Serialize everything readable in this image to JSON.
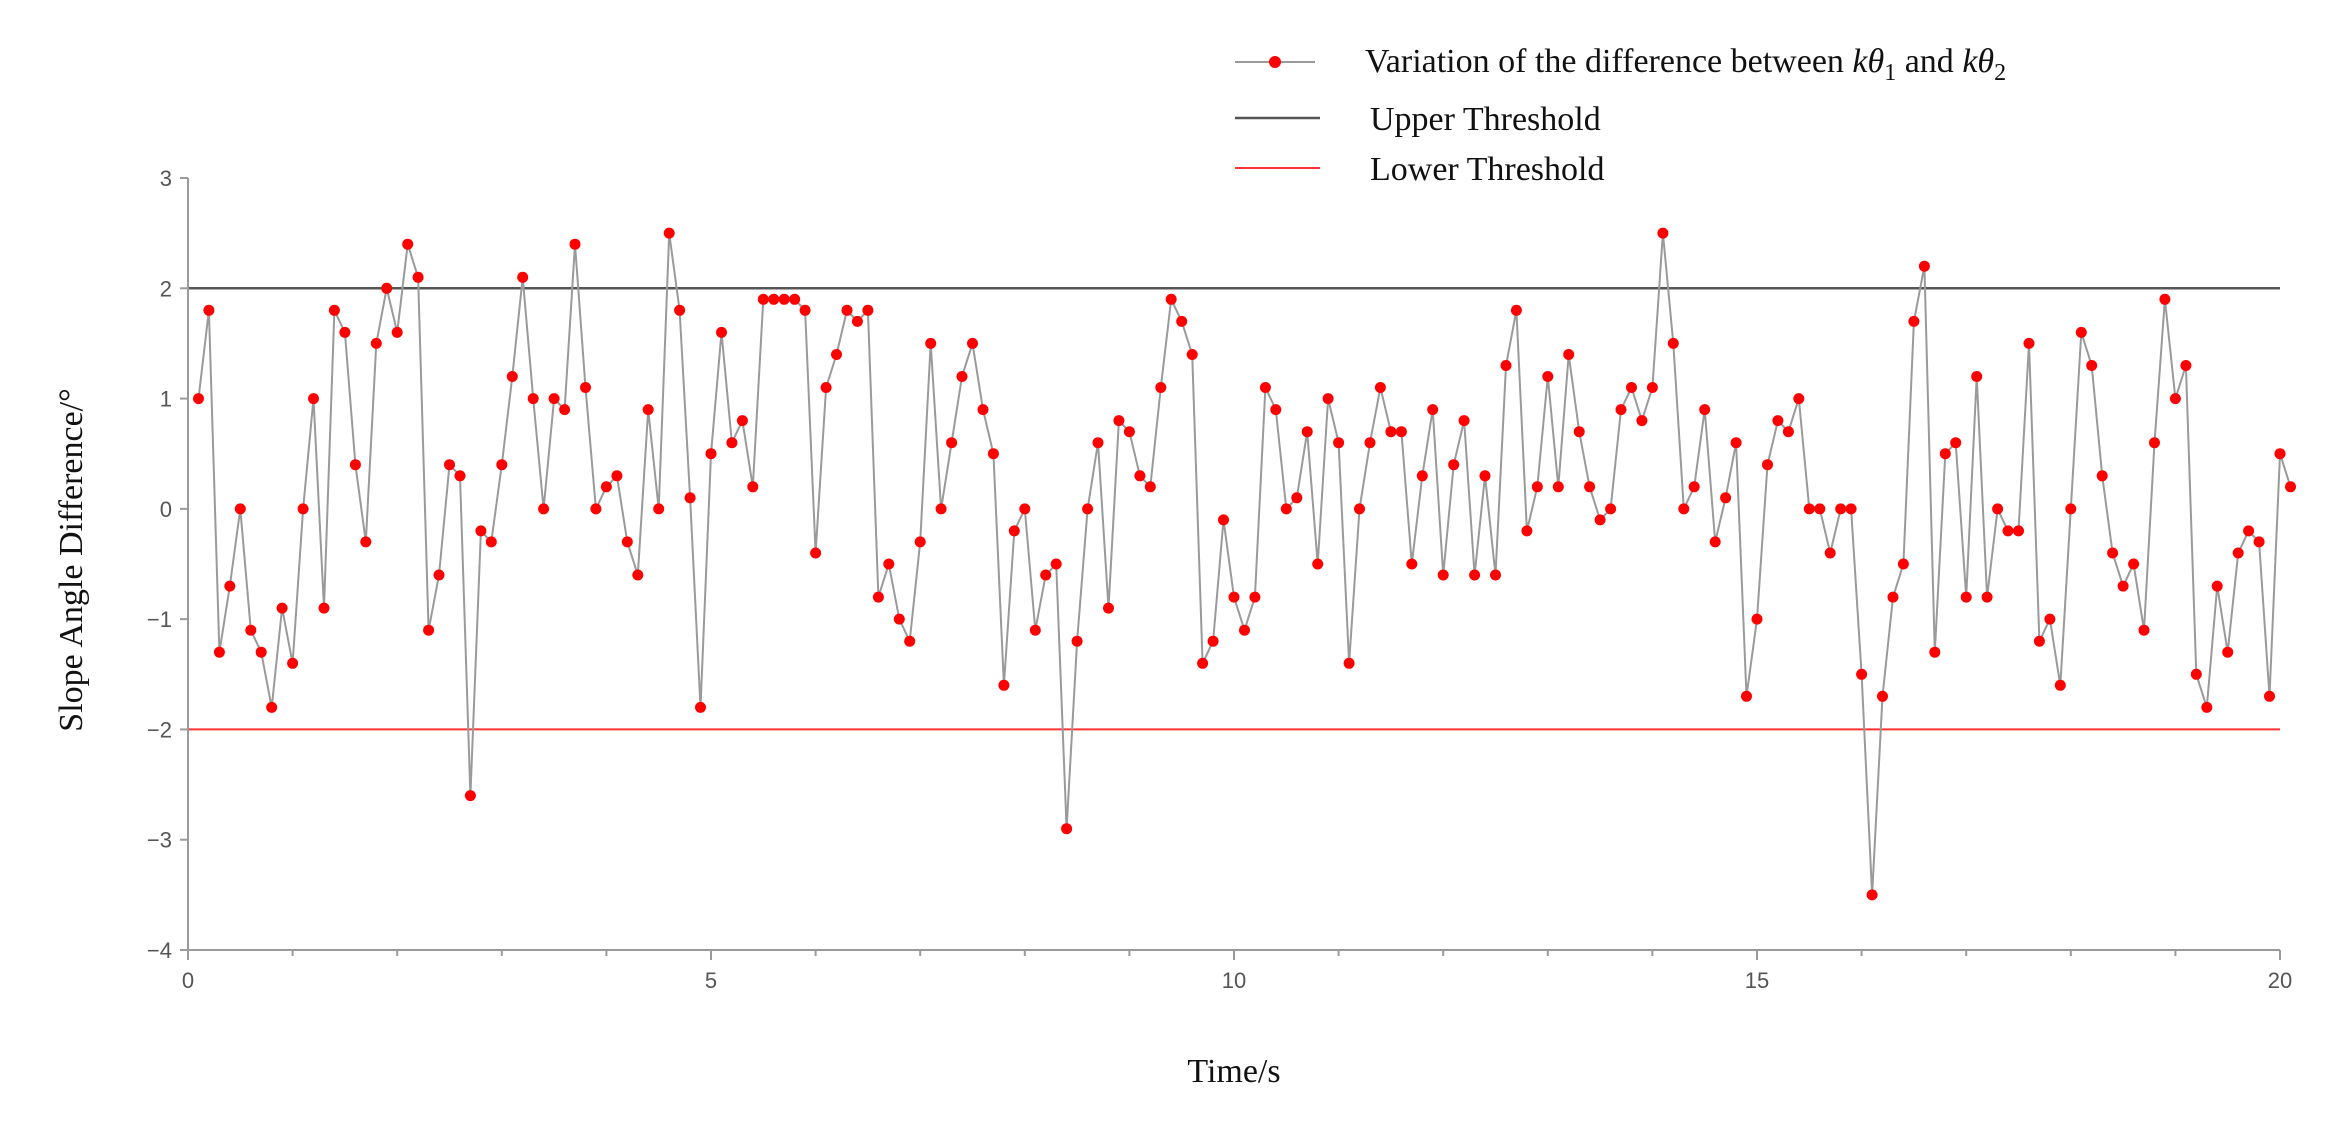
{
  "chart_data": {
    "type": "line",
    "xlabel": "Time/s",
    "ylabel": "Slope Angle Difference/°",
    "xlim": [
      0,
      20
    ],
    "ylim": [
      -4,
      3
    ],
    "x_ticks": [
      "0",
      "5",
      "10",
      "15",
      "20"
    ],
    "y_ticks": [
      "3",
      "2",
      "1",
      "0",
      "−1",
      "−2",
      "−3",
      "−4"
    ],
    "grid": false,
    "legend_position": "top-right",
    "legend": {
      "series_label_prefix": "Variation of the difference between ",
      "series_label_var1": "kθ",
      "series_label_sub1": "1",
      "series_label_mid": " and ",
      "series_label_var2": "kθ",
      "series_label_sub2": "2",
      "upper_label": "Upper Threshold",
      "lower_label": "Lower Threshold"
    },
    "thresholds": {
      "upper": {
        "name": "Upper Threshold",
        "value": 2,
        "color": "#555555"
      },
      "lower": {
        "name": "Lower Threshold",
        "value": -2,
        "color": "#ff3333"
      }
    },
    "series": [
      {
        "name": "Variation of the difference between kθ1 and kθ2",
        "line_color": "#9a9a9a",
        "marker_color": "#ff0000",
        "x_step": 0.1,
        "x_start": 0.1,
        "values": [
          1.0,
          1.8,
          -1.3,
          -0.7,
          0.0,
          -1.1,
          -1.3,
          -1.8,
          -0.9,
          -1.4,
          0.0,
          1.0,
          -0.9,
          1.8,
          1.6,
          0.4,
          -0.3,
          1.5,
          2.0,
          1.6,
          2.4,
          2.1,
          -1.1,
          -0.6,
          0.4,
          0.3,
          -2.6,
          -0.2,
          -0.3,
          0.4,
          1.2,
          2.1,
          1.0,
          0.0,
          1.0,
          0.9,
          2.4,
          1.1,
          0.0,
          0.2,
          0.3,
          -0.3,
          -0.6,
          0.9,
          0.0,
          2.5,
          1.8,
          0.1,
          -1.8,
          0.5,
          1.6,
          0.6,
          0.8,
          0.2,
          1.9,
          1.9,
          1.9,
          1.9,
          1.8,
          -0.4,
          1.1,
          1.4,
          1.8,
          1.7,
          1.8,
          -0.8,
          -0.5,
          -1.0,
          -1.2,
          -0.3,
          1.5,
          0.0,
          0.6,
          1.2,
          1.5,
          0.9,
          0.5,
          -1.6,
          -0.2,
          0.0,
          -1.1,
          -0.6,
          -0.5,
          -2.9,
          -1.2,
          0.0,
          0.6,
          -0.9,
          0.8,
          0.7,
          0.3,
          0.2,
          1.1,
          1.9,
          1.7,
          1.4,
          -1.4,
          -1.2,
          -0.1,
          -0.8,
          -1.1,
          -0.8,
          1.1,
          0.9,
          0.0,
          0.1,
          0.7,
          -0.5,
          1.0,
          0.6,
          -1.4,
          0.0,
          0.6,
          1.1,
          0.7,
          0.7,
          -0.5,
          0.3,
          0.9,
          -0.6,
          0.4,
          0.8,
          -0.6,
          0.3,
          -0.6,
          1.3,
          1.8,
          -0.2,
          0.2,
          1.2,
          0.2,
          1.4,
          0.7,
          0.2,
          -0.1,
          0.0,
          0.9,
          1.1,
          0.8,
          1.1,
          2.5,
          1.5,
          0.0,
          0.2,
          0.9,
          -0.3,
          0.1,
          0.6,
          -1.7,
          -1.0,
          0.4,
          0.8,
          0.7,
          1.0,
          0.0,
          0.0,
          -0.4,
          0.0,
          0.0,
          -1.5,
          -3.5,
          -1.7,
          -0.8,
          -0.5,
          1.7,
          2.2,
          -1.3,
          0.5,
          0.6,
          -0.8,
          1.2,
          -0.8,
          0.0,
          -0.2,
          -0.2,
          1.5,
          -1.2,
          -1.0,
          -1.6,
          0.0,
          1.6,
          1.3,
          0.3,
          -0.4,
          -0.7,
          -0.5,
          -1.1,
          0.6,
          1.9,
          1.0,
          1.3,
          -1.5,
          -1.8,
          -0.7,
          -1.3,
          -0.4,
          -0.2,
          -0.3,
          -1.7,
          0.5,
          0.2
        ]
      }
    ]
  }
}
